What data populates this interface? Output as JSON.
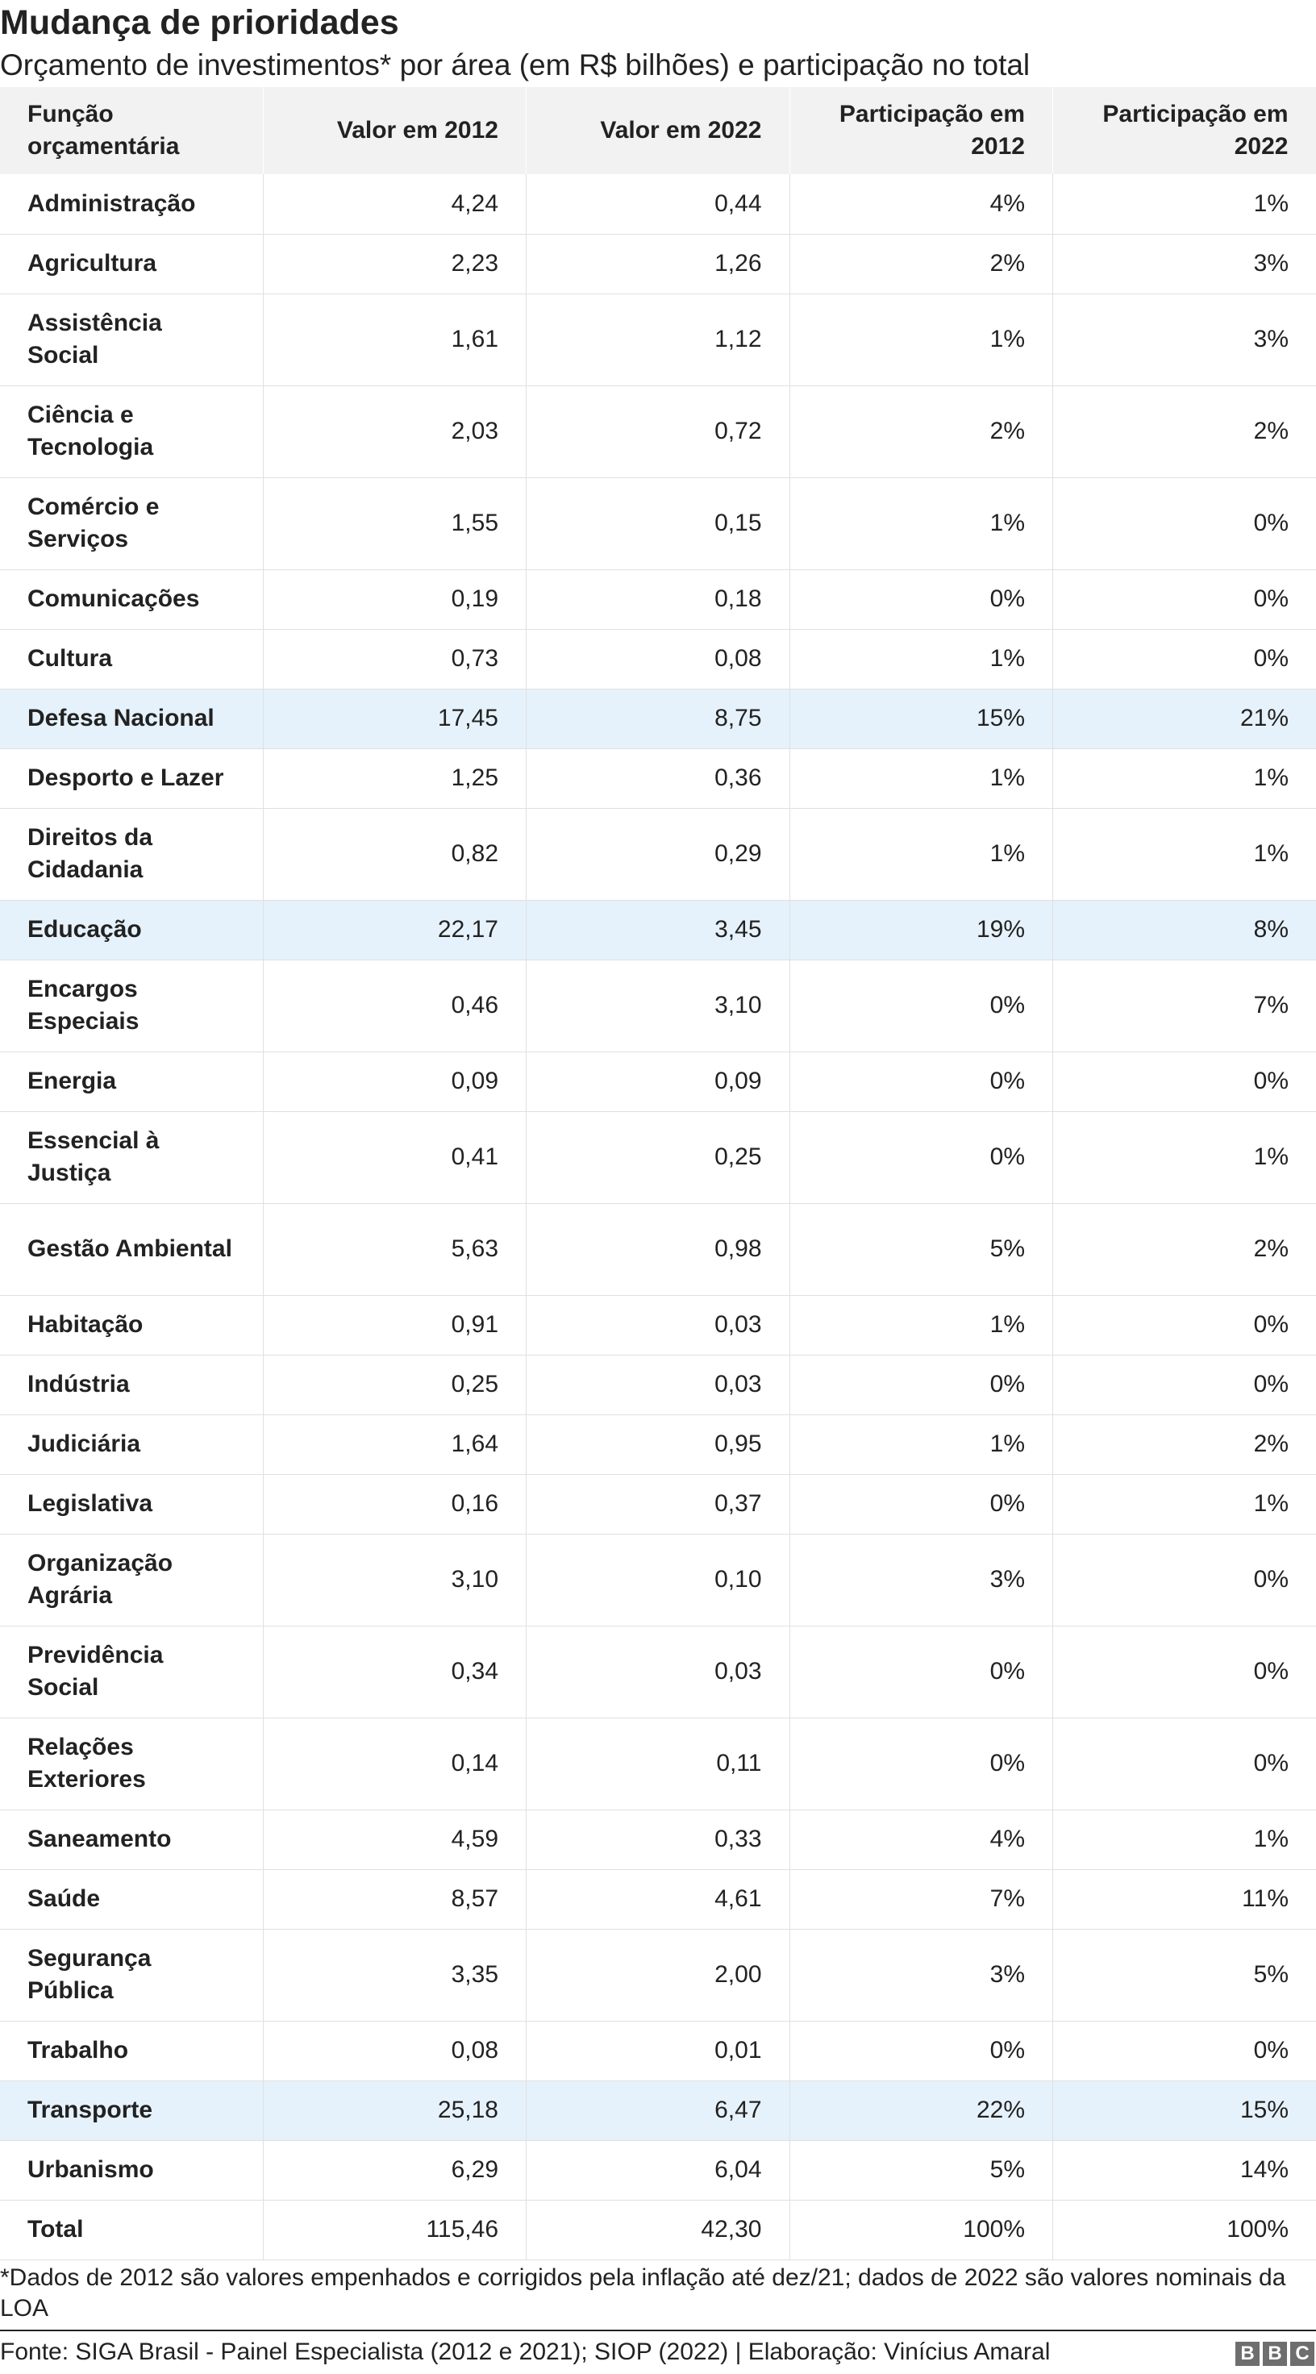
{
  "chart_data": {
    "type": "table",
    "title": "Mudança de prioridades",
    "subtitle": "Orçamento de investimentos* por área (em R$ bilhões) e participação no total",
    "columns": [
      "Função orçamentária",
      "Valor em 2012",
      "Valor em 2022",
      "Participação em 2012",
      "Participação em 2022"
    ],
    "highlight_color": "#e6f2fb",
    "rows": [
      {
        "funcao": "Administração",
        "v2012": "4,24",
        "v2022": "0,44",
        "p2012": "4%",
        "p2022": "1%",
        "highlight": false
      },
      {
        "funcao": "Agricultura",
        "v2012": "2,23",
        "v2022": "1,26",
        "p2012": "2%",
        "p2022": "3%",
        "highlight": false
      },
      {
        "funcao": "Assistência Social",
        "v2012": "1,61",
        "v2022": "1,12",
        "p2012": "1%",
        "p2022": "3%",
        "highlight": false
      },
      {
        "funcao": "Ciência e Tecnologia",
        "v2012": "2,03",
        "v2022": "0,72",
        "p2012": "2%",
        "p2022": "2%",
        "highlight": false
      },
      {
        "funcao": "Comércio e Serviços",
        "v2012": "1,55",
        "v2022": "0,15",
        "p2012": "1%",
        "p2022": "0%",
        "highlight": false
      },
      {
        "funcao": "Comunicações",
        "v2012": "0,19",
        "v2022": "0,18",
        "p2012": "0%",
        "p2022": "0%",
        "highlight": false
      },
      {
        "funcao": "Cultura",
        "v2012": "0,73",
        "v2022": "0,08",
        "p2012": "1%",
        "p2022": "0%",
        "highlight": false
      },
      {
        "funcao": "Defesa Nacional",
        "v2012": "17,45",
        "v2022": "8,75",
        "p2012": "15%",
        "p2022": "21%",
        "highlight": true
      },
      {
        "funcao": "Desporto e Lazer",
        "v2012": "1,25",
        "v2022": "0,36",
        "p2012": "1%",
        "p2022": "1%",
        "highlight": false
      },
      {
        "funcao": "Direitos da Cidadania",
        "v2012": "0,82",
        "v2022": "0,29",
        "p2012": "1%",
        "p2022": "1%",
        "highlight": false
      },
      {
        "funcao": "Educação",
        "v2012": "22,17",
        "v2022": "3,45",
        "p2012": "19%",
        "p2022": "8%",
        "highlight": true
      },
      {
        "funcao": "Encargos Especiais",
        "v2012": "0,46",
        "v2022": "3,10",
        "p2012": "0%",
        "p2022": "7%",
        "highlight": false
      },
      {
        "funcao": "Energia",
        "v2012": "0,09",
        "v2022": "0,09",
        "p2012": "0%",
        "p2022": "0%",
        "highlight": false
      },
      {
        "funcao": "Essencial à Justiça",
        "v2012": "0,41",
        "v2022": "0,25",
        "p2012": "0%",
        "p2022": "1%",
        "highlight": false
      },
      {
        "funcao": "Gestão Ambiental",
        "v2012": "5,63",
        "v2022": "0,98",
        "p2012": "5%",
        "p2022": "2%",
        "highlight": false
      },
      {
        "funcao": "Habitação",
        "v2012": "0,91",
        "v2022": "0,03",
        "p2012": "1%",
        "p2022": "0%",
        "highlight": false
      },
      {
        "funcao": "Indústria",
        "v2012": "0,25",
        "v2022": "0,03",
        "p2012": "0%",
        "p2022": "0%",
        "highlight": false
      },
      {
        "funcao": "Judiciária",
        "v2012": "1,64",
        "v2022": "0,95",
        "p2012": "1%",
        "p2022": "2%",
        "highlight": false
      },
      {
        "funcao": "Legislativa",
        "v2012": "0,16",
        "v2022": "0,37",
        "p2012": "0%",
        "p2022": "1%",
        "highlight": false
      },
      {
        "funcao": "Organização Agrária",
        "v2012": "3,10",
        "v2022": "0,10",
        "p2012": "3%",
        "p2022": "0%",
        "highlight": false
      },
      {
        "funcao": "Previdência Social",
        "v2012": "0,34",
        "v2022": "0,03",
        "p2012": "0%",
        "p2022": "0%",
        "highlight": false
      },
      {
        "funcao": "Relações Exteriores",
        "v2012": "0,14",
        "v2022": "0,11",
        "p2012": "0%",
        "p2022": "0%",
        "highlight": false
      },
      {
        "funcao": "Saneamento",
        "v2012": "4,59",
        "v2022": "0,33",
        "p2012": "4%",
        "p2022": "1%",
        "highlight": false
      },
      {
        "funcao": "Saúde",
        "v2012": "8,57",
        "v2022": "4,61",
        "p2012": "7%",
        "p2022": "11%",
        "highlight": false
      },
      {
        "funcao": "Segurança Pública",
        "v2012": "3,35",
        "v2022": "2,00",
        "p2012": "3%",
        "p2022": "5%",
        "highlight": false
      },
      {
        "funcao": "Trabalho",
        "v2012": "0,08",
        "v2022": "0,01",
        "p2012": "0%",
        "p2022": "0%",
        "highlight": false
      },
      {
        "funcao": "Transporte",
        "v2012": "25,18",
        "v2022": "6,47",
        "p2012": "22%",
        "p2022": "15%",
        "highlight": true
      },
      {
        "funcao": "Urbanismo",
        "v2012": "6,29",
        "v2022": "6,04",
        "p2012": "5%",
        "p2022": "14%",
        "highlight": false
      },
      {
        "funcao": "Total",
        "v2012": "115,46",
        "v2022": "42,30",
        "p2012": "100%",
        "p2022": "100%",
        "highlight": false
      }
    ],
    "footnote": "*Dados de 2012 são valores empenhados e corrigidos pela inflação até dez/21; dados de 2022 são valores nominais da LOA",
    "source": "Fonte: SIGA Brasil - Painel Especialista (2012 e 2021); SIOP (2022) | Elaboração: Vinícius Amaral"
  },
  "logo": [
    "B",
    "B",
    "C"
  ]
}
